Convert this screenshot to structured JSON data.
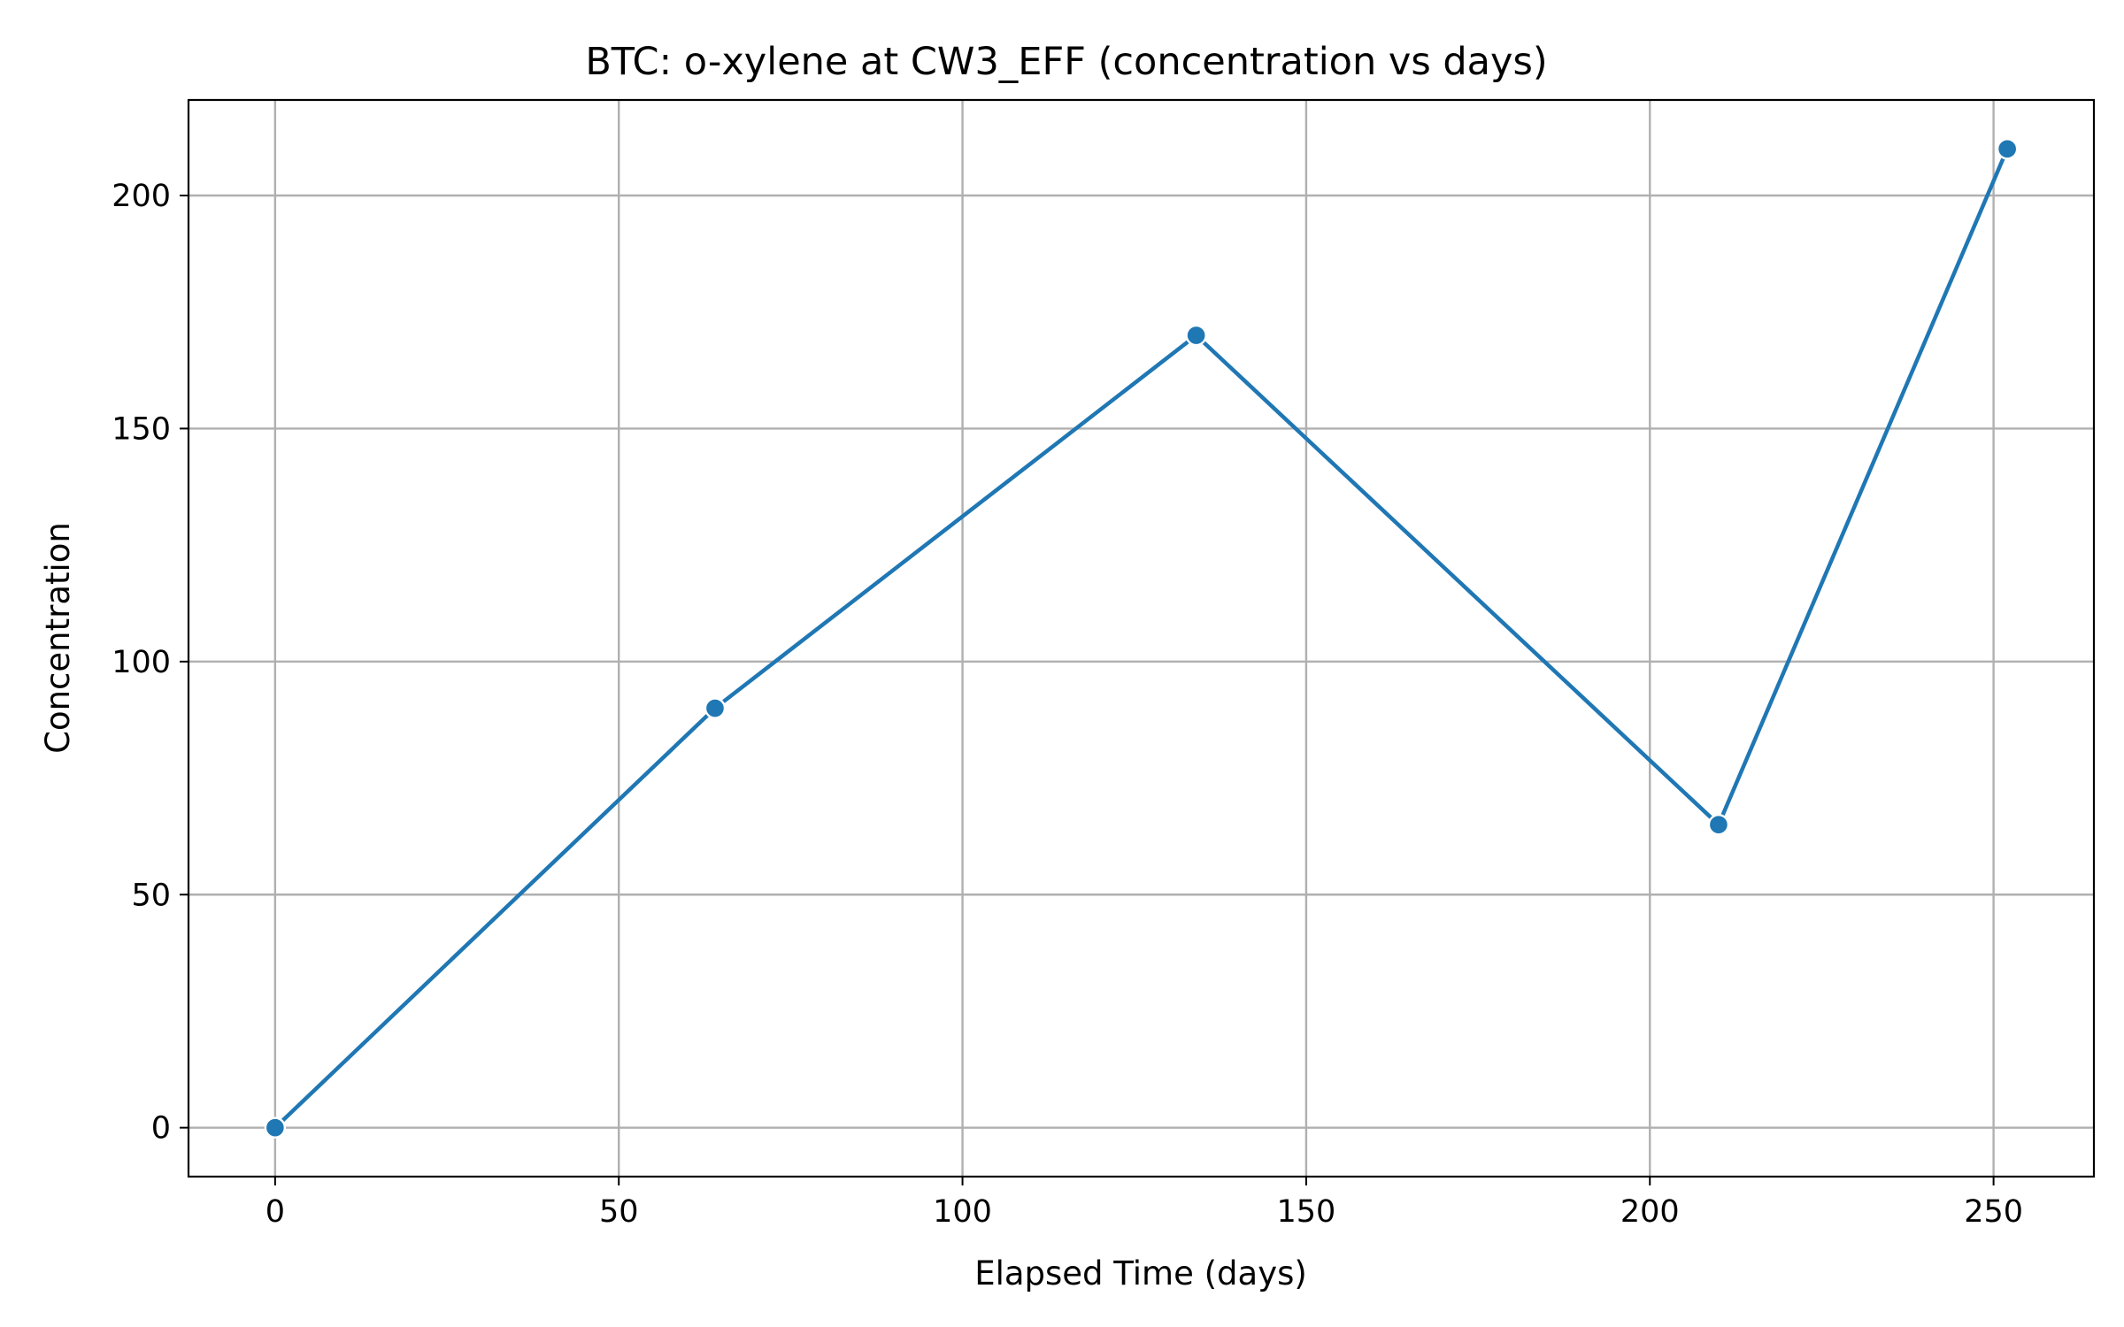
{
  "chart_data": {
    "type": "line",
    "title": "BTC: o-xylene at CW3_EFF (concentration vs days)",
    "xlabel": "Elapsed Time (days)",
    "ylabel": "Concentration",
    "xlim": [
      -12.6,
      264.6
    ],
    "ylim": [
      -10.5,
      220.5
    ],
    "xticks": [
      0,
      50,
      100,
      150,
      200,
      250
    ],
    "yticks": [
      0,
      50,
      100,
      150,
      200
    ],
    "grid": true,
    "legend": "none",
    "series": [
      {
        "x": [
          0,
          64,
          134,
          210,
          252
        ],
        "y": [
          0,
          90,
          170,
          65,
          210
        ],
        "color": "#1f77b4",
        "marker": "circle"
      }
    ]
  }
}
